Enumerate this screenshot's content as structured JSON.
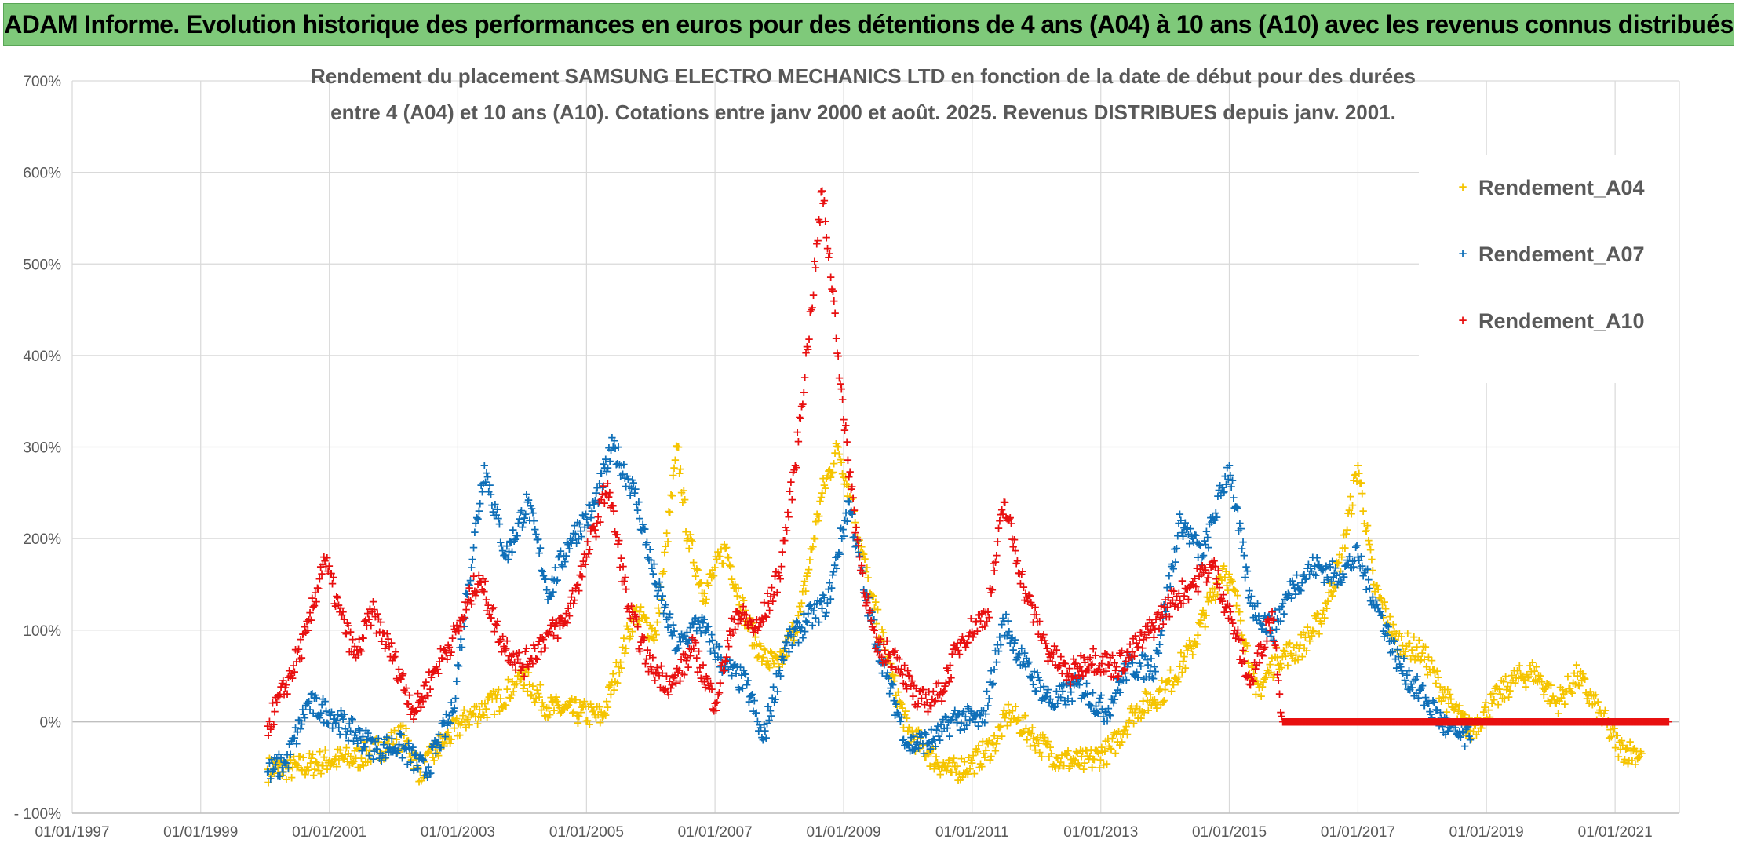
{
  "header": {
    "title": "ADAM Informe. Evolution historique des performances en euros pour des détentions de 4 ans (A04) à 10 ans (A10) avec les revenus connus distribués"
  },
  "chart_data": {
    "type": "scatter",
    "title_line1": "Rendement du placement SAMSUNG ELECTRO MECHANICS LTD en fonction de la date de début pour des durées",
    "title_line2": "entre 4 (A04) et 10 ans (A10). Cotations entre janv 2000 et août. 2025. Revenus DISTRIBUES depuis janv. 2001.",
    "x_axis": {
      "type": "date",
      "range": [
        "1997-01-01",
        "2022-01-01"
      ],
      "tick_labels": [
        "01/01/1997",
        "01/01/1999",
        "01/01/2001",
        "01/01/2003",
        "01/01/2005",
        "01/01/2007",
        "01/01/2009",
        "01/01/2011",
        "01/01/2013",
        "01/01/2015",
        "01/01/2017",
        "01/01/2019",
        "01/01/2021"
      ]
    },
    "y_axis": {
      "range": [
        -100,
        700
      ],
      "unit": "%",
      "tick_labels": [
        "- 100%",
        "0%",
        "100%",
        "200%",
        "300%",
        "400%",
        "500%",
        "600%",
        "700%"
      ]
    },
    "grid": true,
    "legend_position": "top-right",
    "marker": "+",
    "series": [
      {
        "name": "Rendement_A04",
        "color": "#f5c400",
        "points": [
          [
            "2000-01-15",
            -52
          ],
          [
            "2000-07-01",
            -50
          ],
          [
            "2001-01-01",
            -42
          ],
          [
            "2001-06-01",
            -40
          ],
          [
            "2001-10-01",
            -30
          ],
          [
            "2002-03-01",
            -15
          ],
          [
            "2002-06-01",
            -55
          ],
          [
            "2002-10-01",
            -25
          ],
          [
            "2003-03-01",
            5
          ],
          [
            "2003-09-01",
            25
          ],
          [
            "2004-01-01",
            50
          ],
          [
            "2004-06-01",
            15
          ],
          [
            "2004-12-01",
            10
          ],
          [
            "2005-04-01",
            5
          ],
          [
            "2005-07-01",
            60
          ],
          [
            "2005-10-01",
            120
          ],
          [
            "2006-02-01",
            95
          ],
          [
            "2006-06-01",
            300
          ],
          [
            "2006-08-01",
            200
          ],
          [
            "2006-11-01",
            140
          ],
          [
            "2007-03-01",
            190
          ],
          [
            "2007-07-01",
            110
          ],
          [
            "2007-10-01",
            70
          ],
          [
            "2008-01-01",
            60
          ],
          [
            "2008-05-01",
            120
          ],
          [
            "2008-09-01",
            250
          ],
          [
            "2008-12-01",
            300
          ],
          [
            "2009-03-01",
            230
          ],
          [
            "2009-06-01",
            140
          ],
          [
            "2009-10-01",
            50
          ],
          [
            "2010-01-01",
            -10
          ],
          [
            "2010-05-01",
            -35
          ],
          [
            "2010-09-01",
            -55
          ],
          [
            "2011-01-01",
            -45
          ],
          [
            "2011-05-01",
            -25
          ],
          [
            "2011-08-01",
            10
          ],
          [
            "2012-01-01",
            -20
          ],
          [
            "2012-05-01",
            -40
          ],
          [
            "2012-10-01",
            -45
          ],
          [
            "2013-03-01",
            -30
          ],
          [
            "2013-07-01",
            10
          ],
          [
            "2014-01-01",
            35
          ],
          [
            "2014-06-01",
            80
          ],
          [
            "2014-12-01",
            170
          ],
          [
            "2015-03-01",
            120
          ],
          [
            "2015-06-01",
            30
          ],
          [
            "2015-10-01",
            70
          ],
          [
            "2016-02-01",
            80
          ],
          [
            "2016-06-01",
            110
          ],
          [
            "2016-10-01",
            180
          ],
          [
            "2017-01-01",
            280
          ],
          [
            "2017-04-01",
            150
          ],
          [
            "2017-08-01",
            90
          ],
          [
            "2018-01-01",
            75
          ],
          [
            "2018-06-01",
            20
          ],
          [
            "2018-10-01",
            -10
          ],
          [
            "2019-02-01",
            20
          ],
          [
            "2019-06-01",
            45
          ],
          [
            "2019-10-01",
            55
          ],
          [
            "2020-02-01",
            20
          ],
          [
            "2020-06-01",
            50
          ],
          [
            "2020-10-01",
            10
          ],
          [
            "2021-02-01",
            -30
          ],
          [
            "2021-06-01",
            -35
          ]
        ]
      },
      {
        "name": "Rendement_A07",
        "color": "#0f6fb8",
        "points": [
          [
            "2000-01-15",
            -55
          ],
          [
            "2000-05-01",
            -45
          ],
          [
            "2000-09-01",
            20
          ],
          [
            "2001-01-01",
            10
          ],
          [
            "2001-05-01",
            -10
          ],
          [
            "2001-10-01",
            -30
          ],
          [
            "2002-02-01",
            -25
          ],
          [
            "2002-07-01",
            -55
          ],
          [
            "2002-12-01",
            10
          ],
          [
            "2003-03-01",
            150
          ],
          [
            "2003-06-01",
            280
          ],
          [
            "2003-10-01",
            180
          ],
          [
            "2004-02-01",
            240
          ],
          [
            "2004-06-01",
            140
          ],
          [
            "2004-10-01",
            200
          ],
          [
            "2005-02-01",
            230
          ],
          [
            "2005-06-01",
            300
          ],
          [
            "2005-10-01",
            250
          ],
          [
            "2006-02-01",
            150
          ],
          [
            "2006-06-01",
            80
          ],
          [
            "2006-10-01",
            110
          ],
          [
            "2007-03-01",
            60
          ],
          [
            "2007-07-01",
            40
          ],
          [
            "2007-10-01",
            -20
          ],
          [
            "2008-02-01",
            80
          ],
          [
            "2008-06-01",
            110
          ],
          [
            "2008-10-01",
            130
          ],
          [
            "2009-02-01",
            240
          ],
          [
            "2009-05-01",
            140
          ],
          [
            "2009-09-01",
            50
          ],
          [
            "2010-01-01",
            -25
          ],
          [
            "2010-06-01",
            -20
          ],
          [
            "2010-10-01",
            5
          ],
          [
            "2011-03-01",
            0
          ],
          [
            "2011-07-01",
            110
          ],
          [
            "2011-11-01",
            60
          ],
          [
            "2012-04-01",
            20
          ],
          [
            "2012-09-01",
            40
          ],
          [
            "2013-02-01",
            10
          ],
          [
            "2013-06-01",
            60
          ],
          [
            "2013-11-01",
            60
          ],
          [
            "2014-04-01",
            220
          ],
          [
            "2014-08-01",
            180
          ],
          [
            "2015-01-01",
            280
          ],
          [
            "2015-05-01",
            130
          ],
          [
            "2015-09-01",
            100
          ],
          [
            "2016-01-01",
            150
          ],
          [
            "2016-05-01",
            170
          ],
          [
            "2016-09-01",
            160
          ],
          [
            "2017-01-01",
            180
          ],
          [
            "2017-05-01",
            120
          ],
          [
            "2017-09-01",
            60
          ],
          [
            "2018-02-01",
            20
          ],
          [
            "2018-06-01",
            -10
          ],
          [
            "2018-10-01",
            -20
          ]
        ]
      },
      {
        "name": "Rendement_A10",
        "color": "#e81010",
        "points": [
          [
            "2000-01-15",
            -5
          ],
          [
            "2000-05-01",
            40
          ],
          [
            "2000-09-01",
            100
          ],
          [
            "2000-12-01",
            180
          ],
          [
            "2001-03-01",
            120
          ],
          [
            "2001-06-01",
            70
          ],
          [
            "2001-09-01",
            120
          ],
          [
            "2002-01-01",
            70
          ],
          [
            "2002-05-01",
            10
          ],
          [
            "2002-09-01",
            60
          ],
          [
            "2003-01-01",
            100
          ],
          [
            "2003-05-01",
            160
          ],
          [
            "2003-09-01",
            90
          ],
          [
            "2004-01-01",
            60
          ],
          [
            "2004-05-01",
            90
          ],
          [
            "2004-09-01",
            110
          ],
          [
            "2005-01-01",
            180
          ],
          [
            "2005-05-01",
            260
          ],
          [
            "2005-09-01",
            120
          ],
          [
            "2006-01-01",
            60
          ],
          [
            "2006-05-01",
            40
          ],
          [
            "2006-09-01",
            80
          ],
          [
            "2007-01-01",
            20
          ],
          [
            "2007-05-01",
            120
          ],
          [
            "2007-09-01",
            100
          ],
          [
            "2008-01-01",
            160
          ],
          [
            "2008-04-01",
            280
          ],
          [
            "2008-07-01",
            450
          ],
          [
            "2008-09-01",
            580
          ],
          [
            "2008-11-01",
            470
          ],
          [
            "2009-01-01",
            330
          ],
          [
            "2009-04-01",
            180
          ],
          [
            "2009-07-01",
            80
          ],
          [
            "2009-11-01",
            70
          ],
          [
            "2010-03-01",
            20
          ],
          [
            "2010-07-01",
            30
          ],
          [
            "2010-11-01",
            90
          ],
          [
            "2011-04-01",
            120
          ],
          [
            "2011-07-01",
            240
          ],
          [
            "2011-11-01",
            140
          ],
          [
            "2012-03-01",
            80
          ],
          [
            "2012-07-01",
            50
          ],
          [
            "2012-11-01",
            70
          ],
          [
            "2013-04-01",
            60
          ],
          [
            "2013-09-01",
            90
          ],
          [
            "2014-02-01",
            130
          ],
          [
            "2014-06-01",
            150
          ],
          [
            "2014-10-01",
            170
          ],
          [
            "2015-02-01",
            100
          ],
          [
            "2015-05-01",
            40
          ],
          [
            "2015-09-01",
            120
          ],
          [
            "2015-11-01",
            0
          ],
          [
            "2016-06-01",
            0
          ],
          [
            "2017-01-01",
            0
          ],
          [
            "2017-08-01",
            0
          ],
          [
            "2018-03-01",
            0
          ],
          [
            "2018-10-01",
            0
          ],
          [
            "2019-05-01",
            0
          ],
          [
            "2019-12-01",
            0
          ],
          [
            "2020-07-01",
            0
          ],
          [
            "2021-02-01",
            0
          ],
          [
            "2021-11-01",
            0
          ]
        ]
      }
    ]
  }
}
